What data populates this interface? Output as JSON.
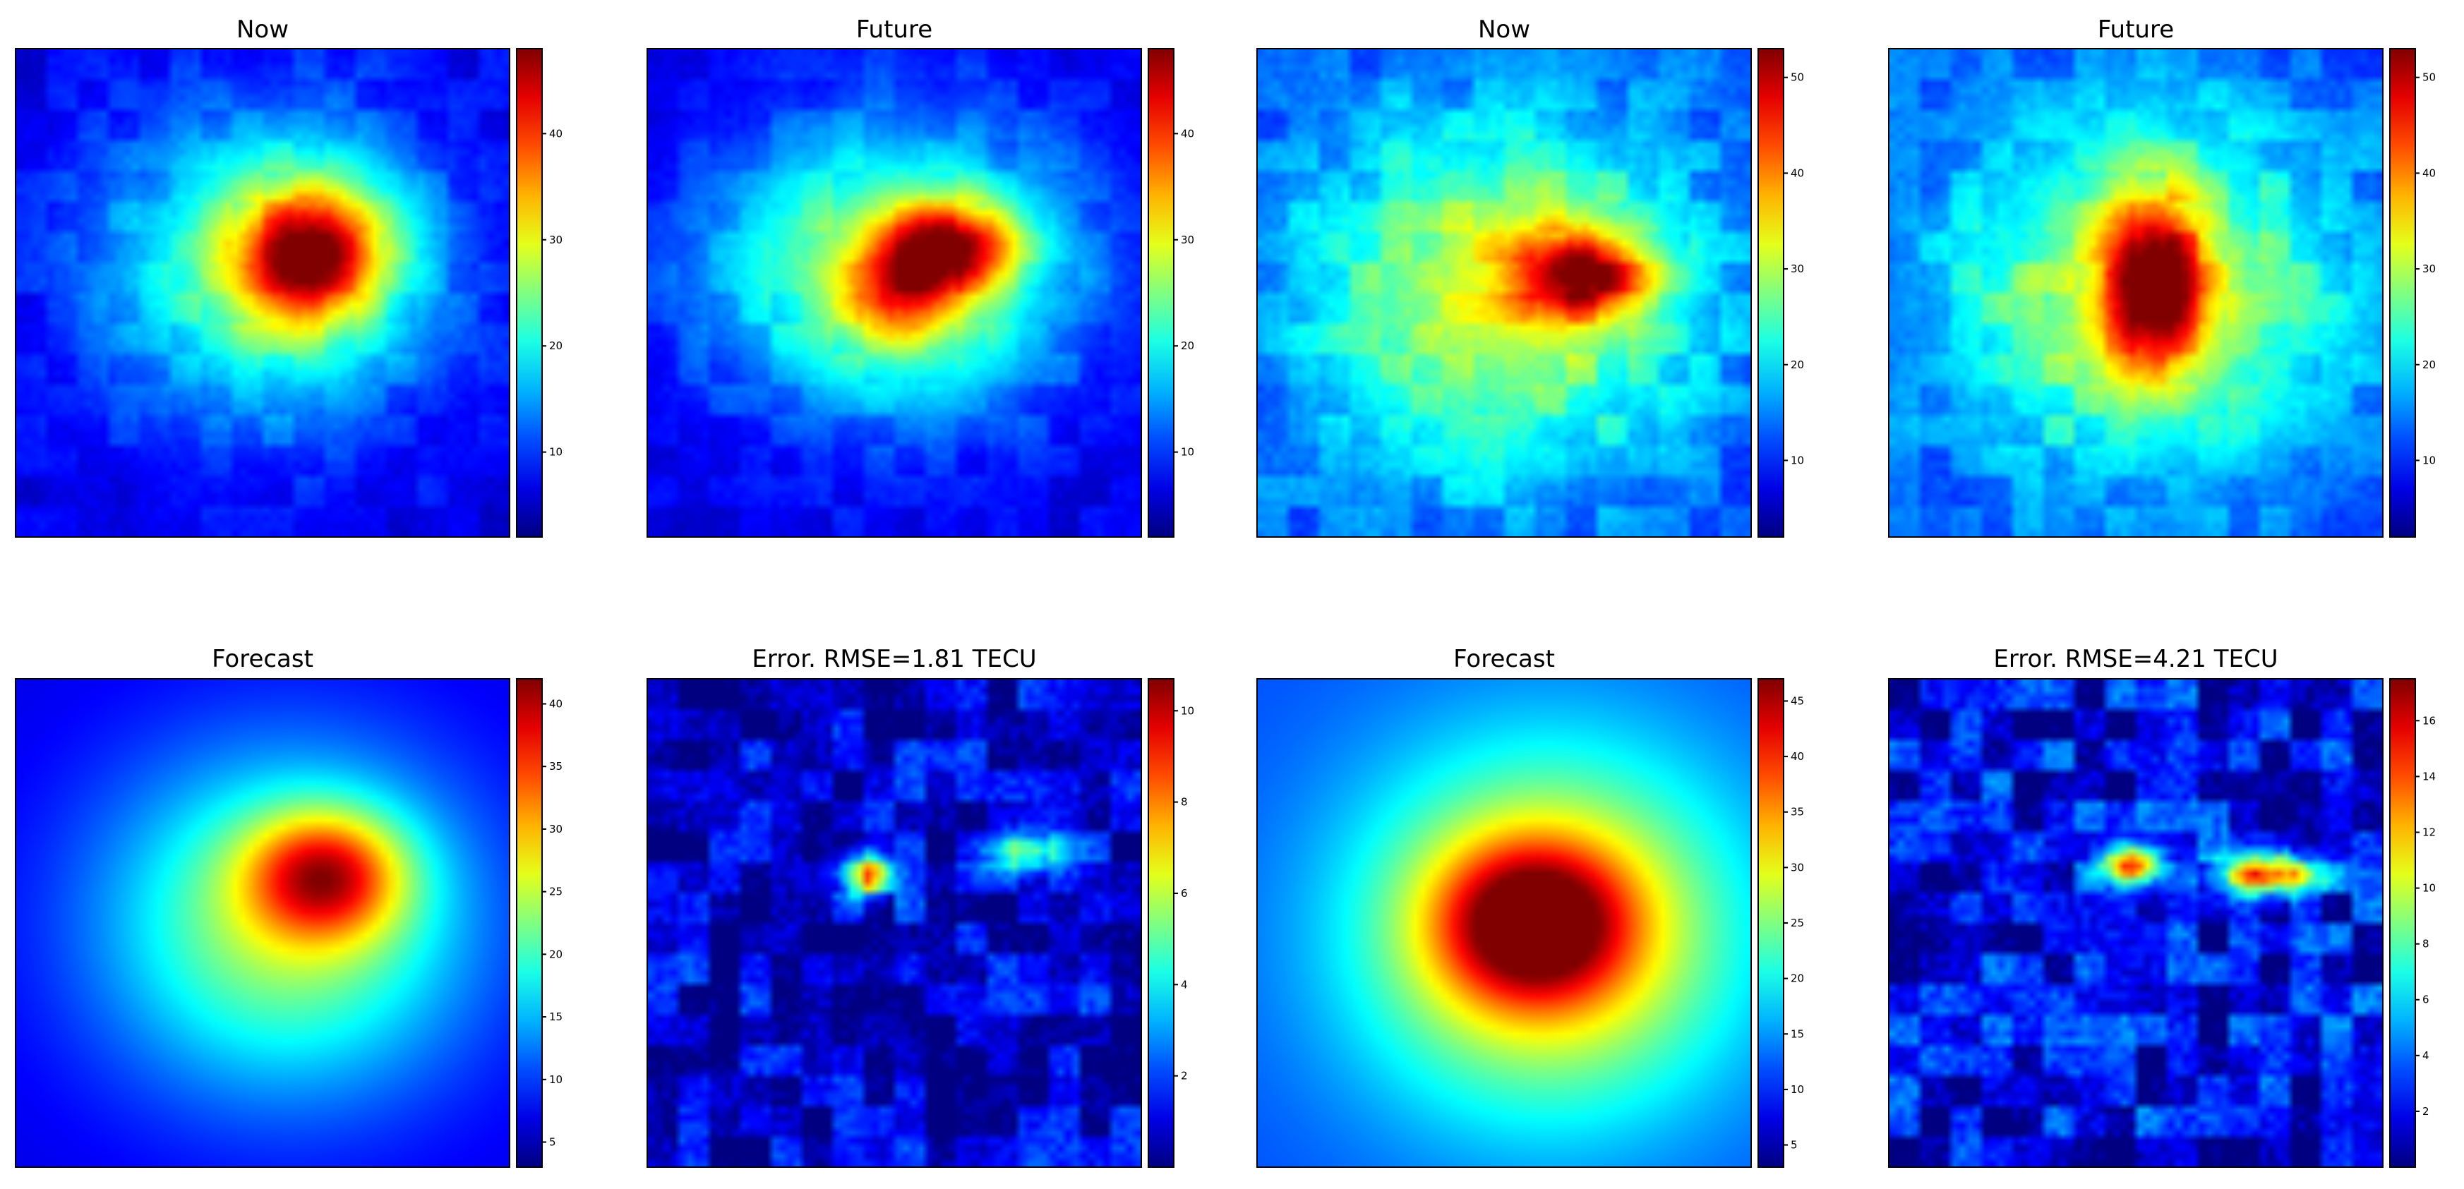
{
  "colors": {
    "colormap": "jet",
    "frame": "#000000",
    "background": "#ffffff"
  },
  "chart_data": [
    {
      "type": "heatmap",
      "title": "Now",
      "colorbar": {
        "ticks": [
          10,
          20,
          30,
          40
        ],
        "range": [
          2,
          48
        ]
      },
      "blobs": [
        {
          "x": 0.52,
          "y": 0.45,
          "sx": 0.35,
          "sy": 0.32,
          "a": 0.4
        },
        {
          "x": 0.6,
          "y": 0.42,
          "sx": 0.15,
          "sy": 0.14,
          "a": 0.6
        }
      ],
      "noise": 0.05,
      "base": 0.1
    },
    {
      "type": "heatmap",
      "title": "Future",
      "colorbar": {
        "ticks": [
          10,
          20,
          30,
          40
        ],
        "range": [
          2,
          48
        ]
      },
      "blobs": [
        {
          "x": 0.5,
          "y": 0.45,
          "sx": 0.38,
          "sy": 0.3,
          "a": 0.45
        },
        {
          "x": 0.62,
          "y": 0.4,
          "sx": 0.14,
          "sy": 0.09,
          "a": 0.5
        },
        {
          "x": 0.52,
          "y": 0.5,
          "sx": 0.12,
          "sy": 0.11,
          "a": 0.35
        }
      ],
      "noise": 0.05,
      "base": 0.1
    },
    {
      "type": "heatmap",
      "title": "Now",
      "colorbar": {
        "ticks": [
          10,
          20,
          30,
          40,
          50
        ],
        "range": [
          2,
          53
        ]
      },
      "blobs": [
        {
          "x": 0.5,
          "y": 0.5,
          "sx": 0.4,
          "sy": 0.36,
          "a": 0.4
        },
        {
          "x": 0.66,
          "y": 0.46,
          "sx": 0.14,
          "sy": 0.09,
          "a": 0.55
        }
      ],
      "noise": 0.07,
      "base": 0.2
    },
    {
      "type": "heatmap",
      "title": "Future",
      "colorbar": {
        "ticks": [
          10,
          20,
          30,
          40,
          50
        ],
        "range": [
          2,
          53
        ]
      },
      "blobs": [
        {
          "x": 0.52,
          "y": 0.5,
          "sx": 0.4,
          "sy": 0.35,
          "a": 0.4
        },
        {
          "x": 0.54,
          "y": 0.48,
          "sx": 0.1,
          "sy": 0.18,
          "a": 0.55
        }
      ],
      "noise": 0.07,
      "base": 0.2
    },
    {
      "type": "heatmap",
      "title": "Forecast",
      "colorbar": {
        "ticks": [
          5,
          10,
          15,
          20,
          25,
          30,
          35,
          40
        ],
        "range": [
          3,
          42
        ]
      },
      "blobs": [
        {
          "x": 0.55,
          "y": 0.5,
          "sx": 0.38,
          "sy": 0.35,
          "a": 0.45
        },
        {
          "x": 0.63,
          "y": 0.4,
          "sx": 0.16,
          "sy": 0.13,
          "a": 0.5
        }
      ],
      "noise": 0.0,
      "base": 0.1
    },
    {
      "type": "heatmap",
      "title": "Error. RMSE=1.81  TECU",
      "colorbar": {
        "ticks": [
          2,
          4,
          6,
          8,
          10
        ],
        "range": [
          0,
          10.7
        ]
      },
      "blobs": [
        {
          "x": 0.44,
          "y": 0.4,
          "sx": 0.05,
          "sy": 0.05,
          "a": 0.6
        },
        {
          "x": 0.77,
          "y": 0.35,
          "sx": 0.08,
          "sy": 0.04,
          "a": 0.5
        }
      ],
      "noise": 0.15,
      "base": 0.08
    },
    {
      "type": "heatmap",
      "title": "Forecast",
      "colorbar": {
        "ticks": [
          5,
          10,
          15,
          20,
          25,
          30,
          35,
          40,
          45
        ],
        "range": [
          3,
          47
        ]
      },
      "blobs": [
        {
          "x": 0.59,
          "y": 0.52,
          "sx": 0.4,
          "sy": 0.38,
          "a": 0.5
        },
        {
          "x": 0.56,
          "y": 0.5,
          "sx": 0.19,
          "sy": 0.16,
          "a": 0.55
        }
      ],
      "noise": 0.0,
      "base": 0.2
    },
    {
      "type": "heatmap",
      "title": "Error. RMSE=4.21  TECU",
      "colorbar": {
        "ticks": [
          2,
          4,
          6,
          8,
          10,
          12,
          14,
          16
        ],
        "range": [
          0,
          17.5
        ]
      },
      "blobs": [
        {
          "x": 0.49,
          "y": 0.38,
          "sx": 0.06,
          "sy": 0.04,
          "a": 0.7
        },
        {
          "x": 0.77,
          "y": 0.4,
          "sx": 0.1,
          "sy": 0.04,
          "a": 0.8
        }
      ],
      "noise": 0.18,
      "base": 0.1
    }
  ]
}
